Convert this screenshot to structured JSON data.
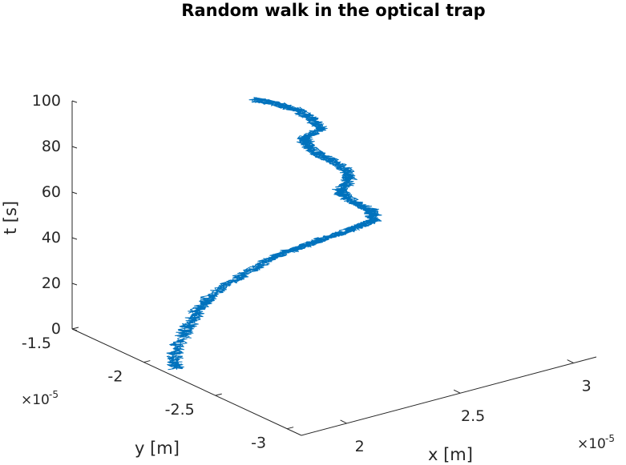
{
  "chart_data": {
    "type": "line",
    "projection": "3d",
    "title": "Random walk in the optical trap",
    "xlabel": "x [m]",
    "ylabel": "y [m]",
    "zlabel": "t [s]",
    "x_exponent": {
      "base": "×10",
      "power": "-5"
    },
    "y_exponent": {
      "base": "×10",
      "power": "-5"
    },
    "x_ticks": [
      {
        "value": 2,
        "label": "2"
      },
      {
        "value": 2.5,
        "label": "2.5"
      },
      {
        "value": 3,
        "label": "3"
      }
    ],
    "y_ticks": [
      {
        "value": -1.5,
        "label": "-1.5"
      },
      {
        "value": -2,
        "label": "-2"
      },
      {
        "value": -2.5,
        "label": "-2.5"
      },
      {
        "value": -3,
        "label": "-3"
      }
    ],
    "z_ticks": [
      {
        "value": 0,
        "label": "0"
      },
      {
        "value": 20,
        "label": "20"
      },
      {
        "value": 40,
        "label": "40"
      },
      {
        "value": 60,
        "label": "60"
      },
      {
        "value": 80,
        "label": "80"
      },
      {
        "value": 100,
        "label": "100"
      }
    ],
    "xlim": [
      1.8,
      3.1
    ],
    "ylim": [
      -3.1,
      -1.5
    ],
    "zlim": [
      0,
      100
    ],
    "grid": false,
    "series_color": "#0072BD",
    "series": [
      {
        "x": [
          1.85,
          1.9,
          2.0,
          2.08,
          2.15,
          2.22,
          2.32,
          2.45,
          2.55,
          2.62,
          2.68,
          2.72,
          2.78,
          2.82,
          2.85,
          2.86,
          2.82,
          2.8,
          2.83,
          2.84,
          2.8,
          2.75,
          2.72,
          2.7,
          2.74,
          2.72,
          2.68,
          2.6,
          2.52
        ],
        "y": [
          -2.15,
          -2.05,
          -1.95,
          -1.88,
          -1.82,
          -1.78,
          -1.75,
          -1.72,
          -1.7,
          -1.72,
          -1.75,
          -1.8,
          -1.85,
          -1.9,
          -1.95,
          -1.9,
          -1.82,
          -1.78,
          -1.8,
          -1.78,
          -1.72,
          -1.7,
          -1.68,
          -1.7,
          -1.75,
          -1.72,
          -1.68,
          -1.64,
          -1.62
        ],
        "z": [
          0,
          2,
          4,
          6,
          8,
          10,
          13,
          15,
          17,
          19,
          21,
          24,
          27,
          30,
          33,
          36,
          39,
          42,
          46,
          50,
          54,
          58,
          62,
          66,
          70,
          74,
          78,
          82,
          85
        ]
      }
    ]
  }
}
